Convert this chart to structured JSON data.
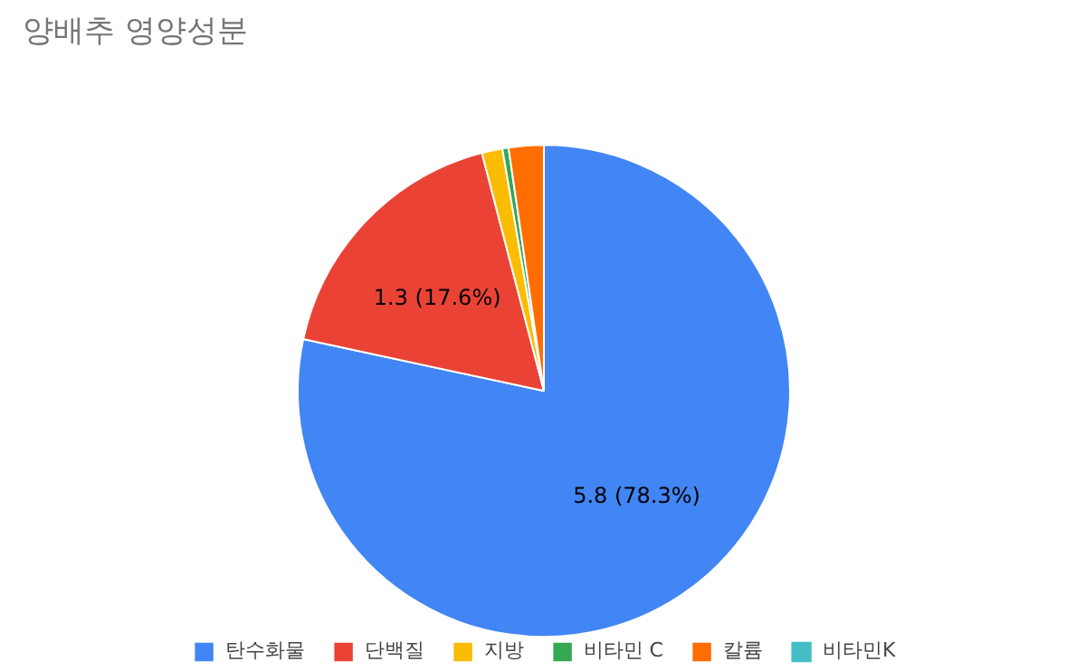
{
  "chart_data": {
    "type": "pie",
    "title": "양배추 영양성분",
    "categories": [
      "탄수화물",
      "단백질",
      "지방",
      "비타민 C",
      "칼륨",
      "비타민K"
    ],
    "values": [
      5.8,
      1.3,
      0.1,
      0.03,
      0.17,
      0
    ],
    "colors": [
      "#4285f4",
      "#ea4335",
      "#fbbc04",
      "#34a853",
      "#ff6d01",
      "#46bdc6"
    ],
    "value_labels": [
      "5.8 (78.3%)",
      "1.3 (17.6%)",
      null,
      null,
      null,
      null
    ],
    "legend": "bottom"
  }
}
